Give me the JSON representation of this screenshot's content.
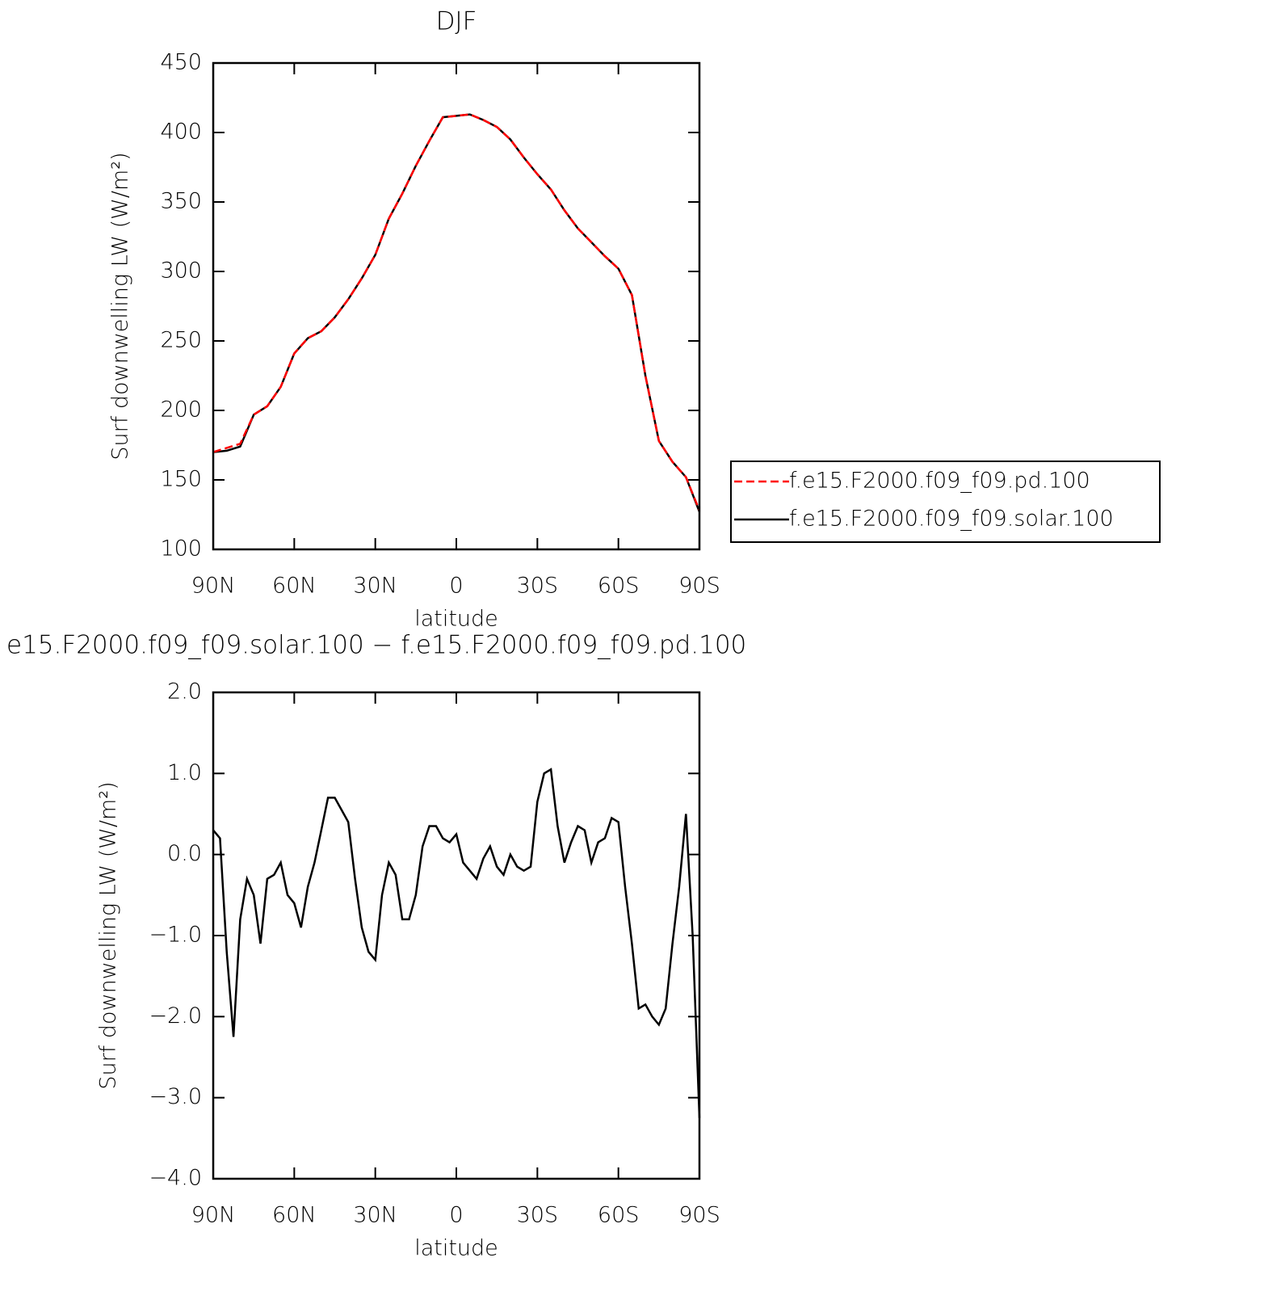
{
  "chart_data": [
    {
      "type": "line",
      "title": "DJF",
      "x_label": "latitude",
      "y_label": "Surf downwelling LW (W/m²)",
      "x": [
        90,
        85,
        80,
        75,
        70,
        65,
        60,
        55,
        50,
        45,
        40,
        35,
        30,
        25,
        20,
        15,
        10,
        5,
        0,
        -5,
        -10,
        -15,
        -20,
        -25,
        -30,
        -35,
        -40,
        -45,
        -50,
        -55,
        -60,
        -65,
        -70,
        -75,
        -80,
        -85,
        -90
      ],
      "series": [
        {
          "name": "f.e15.F2000.f09_f09.pd.100",
          "color": "#ff0000",
          "style": "dashed",
          "values": [
            170,
            173,
            176,
            197,
            203,
            217,
            241,
            252,
            257,
            267,
            280,
            295,
            312,
            338,
            356,
            376,
            394,
            411,
            412,
            413,
            409,
            404,
            395,
            382,
            370,
            359,
            344,
            331,
            321,
            311,
            302,
            283,
            225,
            178,
            163,
            152,
            128
          ]
        },
        {
          "name": "f.e15.F2000.f09_f09.solar.100",
          "color": "#000000",
          "style": "solid",
          "values": [
            170,
            171,
            174,
            197,
            203,
            217,
            241,
            252,
            257,
            267,
            280,
            295,
            312,
            338,
            356,
            376,
            394,
            411,
            412,
            413,
            409,
            404,
            395,
            382,
            370,
            359,
            344,
            331,
            321,
            311,
            302,
            283,
            225,
            178,
            163,
            152,
            127
          ]
        }
      ],
      "xlim": [
        90,
        -90
      ],
      "xticks": [
        {
          "value": 90,
          "label": "90N"
        },
        {
          "value": 60,
          "label": "60N"
        },
        {
          "value": 30,
          "label": "30N"
        },
        0,
        {
          "value": -30,
          "label": "30S"
        },
        {
          "value": -60,
          "label": "60S"
        },
        {
          "value": -90,
          "label": "90S"
        }
      ],
      "ylim": [
        100,
        450
      ],
      "yticks": [
        100,
        150,
        200,
        250,
        300,
        350,
        400,
        450
      ],
      "legend": "right"
    },
    {
      "type": "line",
      "title": "e15.F2000.f09_f09.solar.100 − f.e15.F2000.f09_f09.pd.100",
      "x_label": "latitude",
      "y_label": "Surf downwelling LW (W/m²)",
      "x": [
        90,
        87.5,
        85,
        82.5,
        80,
        77.5,
        75,
        72.5,
        70,
        67.5,
        65,
        62.5,
        60,
        57.5,
        55,
        52.5,
        50,
        47.5,
        45,
        42.5,
        40,
        37.5,
        35,
        32.5,
        30,
        27.5,
        25,
        22.5,
        20,
        17.5,
        15,
        12.5,
        10,
        7.5,
        5,
        2.5,
        0,
        -2.5,
        -5,
        -7.5,
        -10,
        -12.5,
        -15,
        -17.5,
        -20,
        -22.5,
        -25,
        -27.5,
        -30,
        -32.5,
        -35,
        -37.5,
        -40,
        -42.5,
        -45,
        -47.5,
        -50,
        -52.5,
        -55,
        -57.5,
        -60,
        -62.5,
        -65,
        -67.5,
        -70,
        -72.5,
        -75,
        -77.5,
        -80,
        -82.5,
        -85,
        -87.5,
        -90
      ],
      "values": [
        0.3,
        0.2,
        -1.2,
        -2.25,
        -0.8,
        -0.3,
        -0.5,
        -1.1,
        -0.3,
        -0.25,
        -0.1,
        -0.5,
        -0.6,
        -0.9,
        -0.4,
        -0.1,
        0.3,
        0.7,
        0.7,
        0.55,
        0.4,
        -0.3,
        -0.9,
        -1.2,
        -1.3,
        -0.5,
        -0.1,
        -0.25,
        -0.8,
        -0.8,
        -0.5,
        0.1,
        0.35,
        0.35,
        0.2,
        0.15,
        0.25,
        -0.1,
        -0.2,
        -0.3,
        -0.05,
        0.1,
        -0.15,
        -0.25,
        0.0,
        -0.15,
        -0.2,
        -0.15,
        0.65,
        1.0,
        1.05,
        0.35,
        -0.1,
        0.15,
        0.35,
        0.3,
        -0.1,
        0.15,
        0.2,
        0.45,
        0.4,
        -0.4,
        -1.1,
        -1.9,
        -1.85,
        -2.0,
        -2.1,
        -1.9,
        -1.1,
        -0.4,
        0.5,
        -1.0,
        -3.25
      ],
      "color": "#000000",
      "style": "solid",
      "xlim": [
        90,
        -90
      ],
      "xticks": [
        {
          "value": 90,
          "label": "90N"
        },
        {
          "value": 60,
          "label": "60N"
        },
        {
          "value": 30,
          "label": "30N"
        },
        0,
        {
          "value": -30,
          "label": "30S"
        },
        {
          "value": -60,
          "label": "60S"
        },
        {
          "value": -90,
          "label": "90S"
        }
      ],
      "ylim": [
        -4,
        2
      ],
      "yticks": [
        {
          "value": -4,
          "label": "−4.0"
        },
        {
          "value": -3,
          "label": "−3.0"
        },
        {
          "value": -2,
          "label": "−2.0"
        },
        {
          "value": -1,
          "label": "−1.0"
        },
        {
          "value": 0,
          "label": "0.0"
        },
        {
          "value": 1,
          "label": "1.0"
        },
        {
          "value": 2,
          "label": "2.0"
        }
      ]
    }
  ]
}
